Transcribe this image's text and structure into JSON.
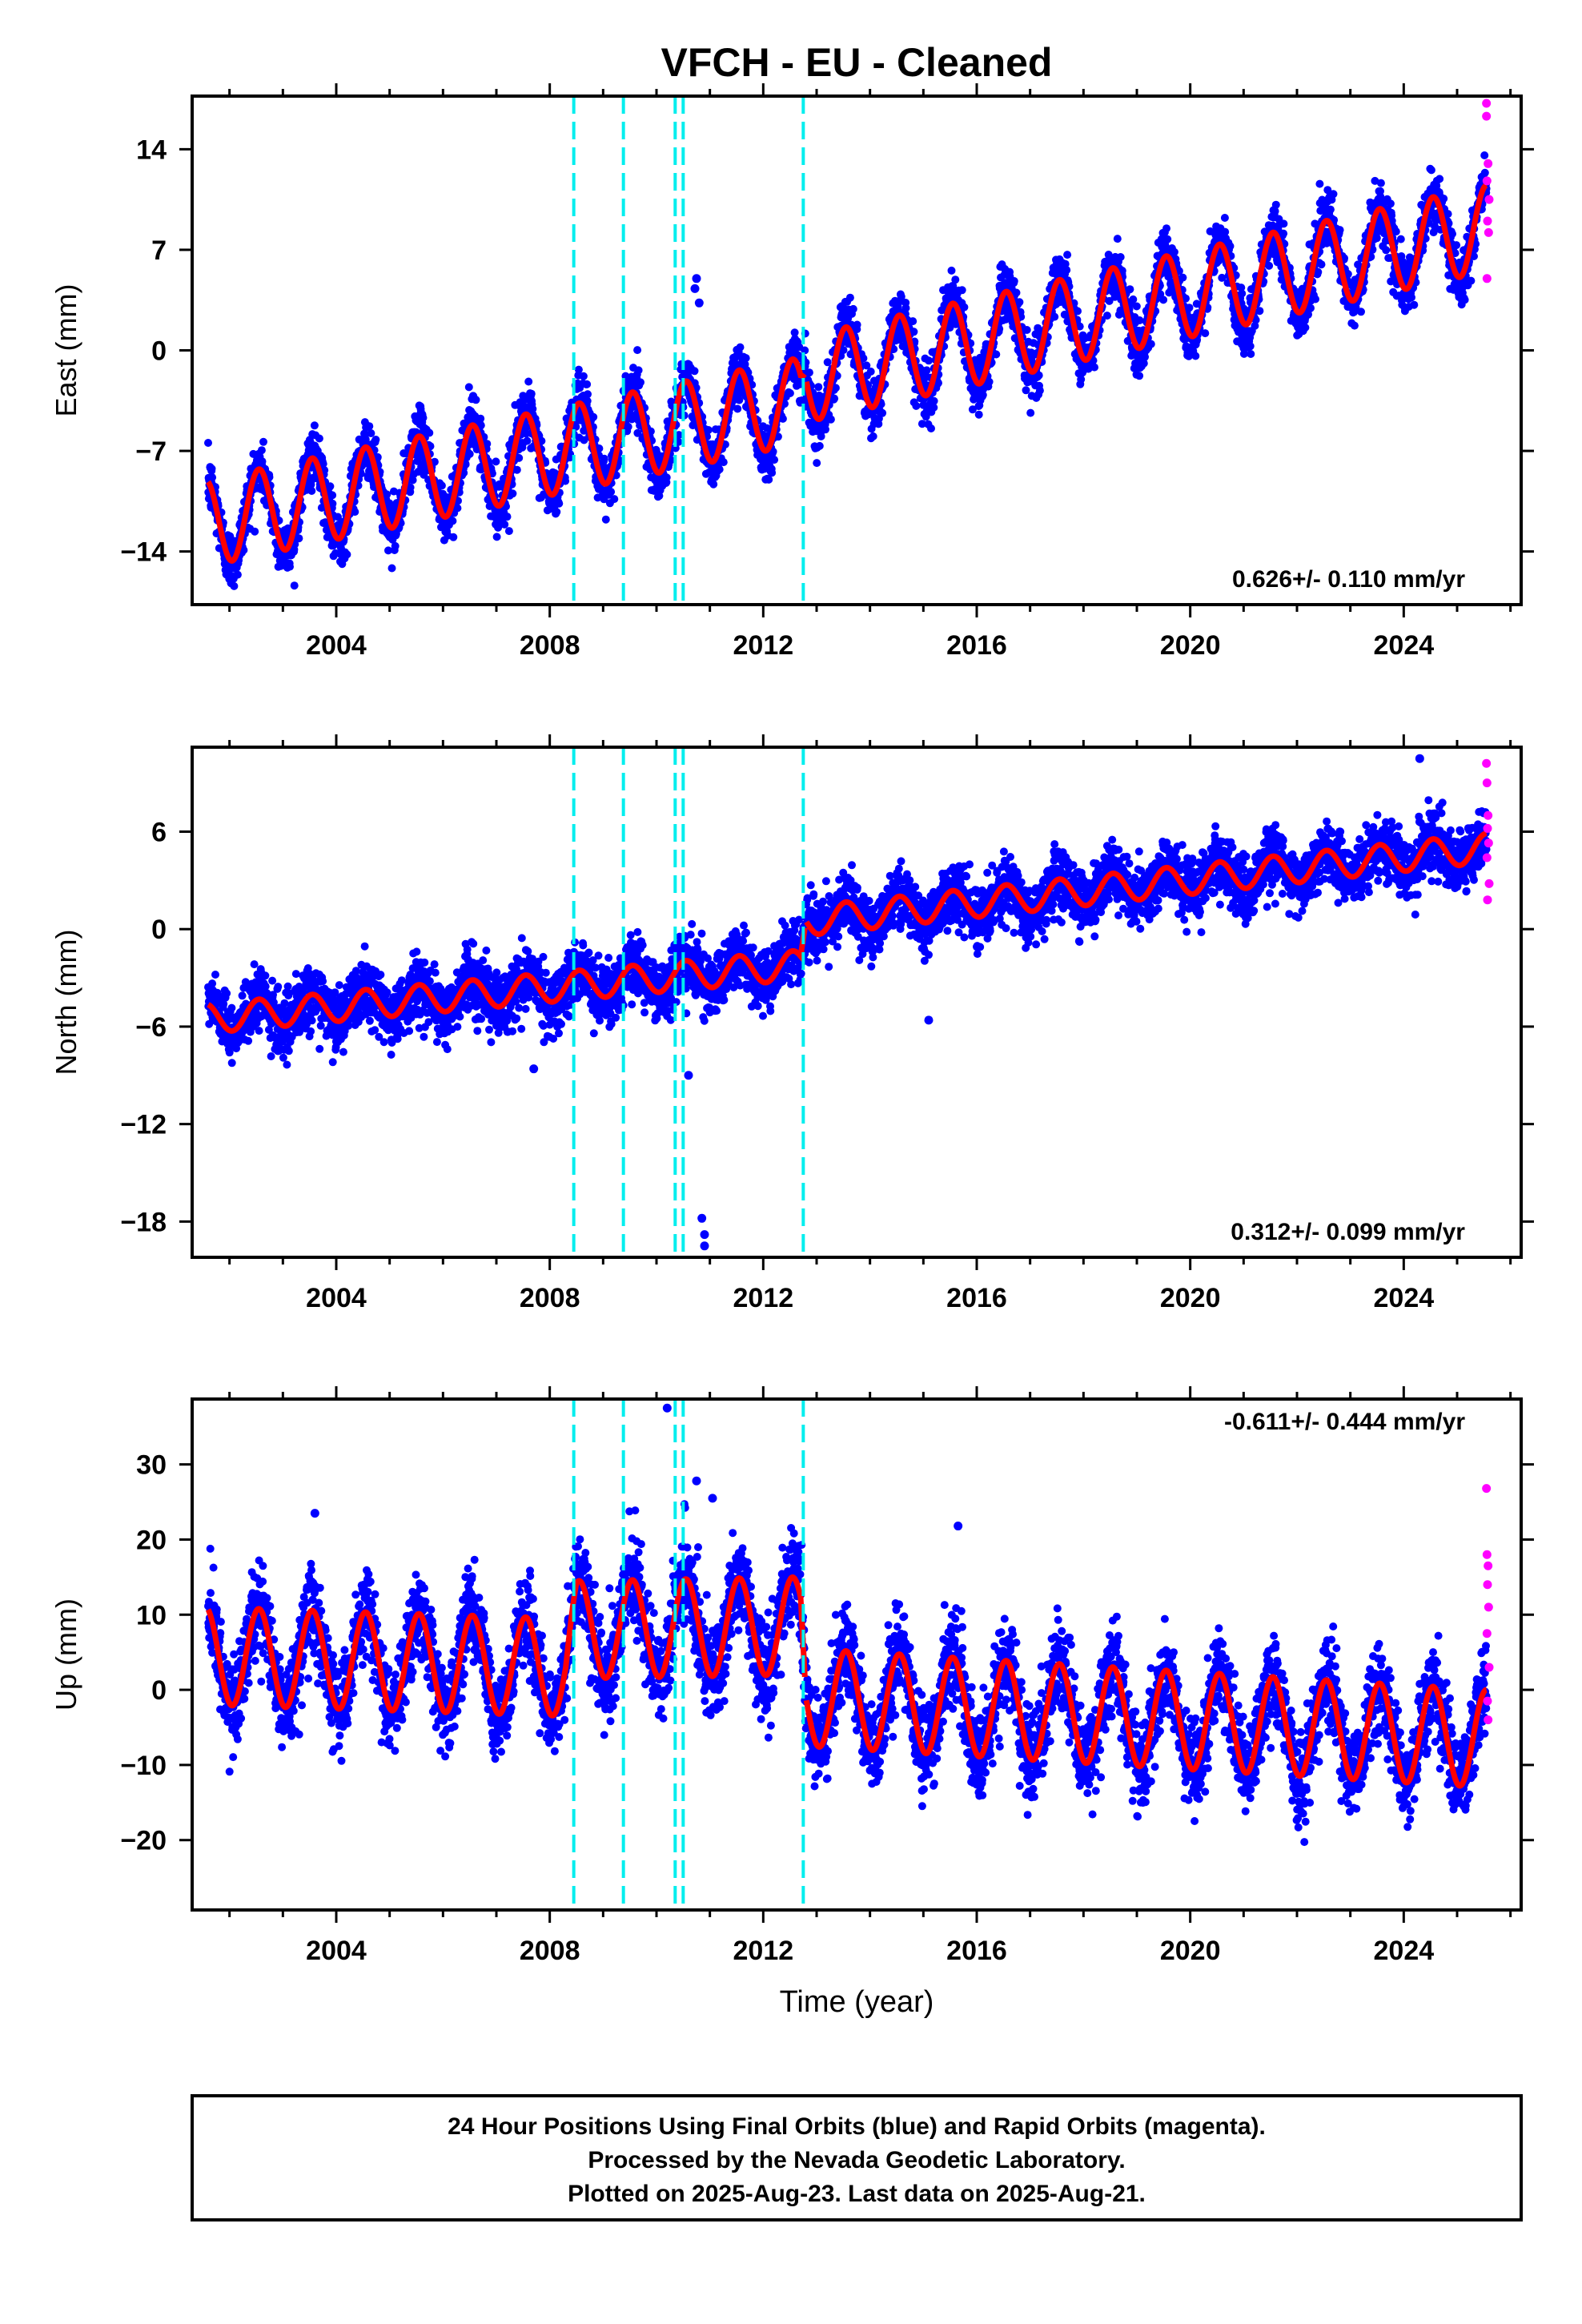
{
  "title": "VFCH  - EU - Cleaned",
  "colors": {
    "final_orbits": "#0000ff",
    "rapid_orbits": "#ff00ff",
    "model": "#ff0000",
    "offsets": "#00eeee",
    "frame": "#000000"
  },
  "footer": {
    "line1": "24 Hour Positions Using Final Orbits (blue) and Rapid Orbits (magenta).",
    "line2": "Processed by the Nevada Geodetic Laboratory.",
    "line3": "Plotted on 2025-Aug-23. Last data on 2025-Aug-21."
  },
  "chart_data": [
    {
      "type": "scatter",
      "component": "east",
      "ylabel": "East (mm)",
      "xlabel": "",
      "xlim": [
        2001.3,
        2026.2
      ],
      "ylim": [
        -17.7,
        17.7
      ],
      "xticks": [
        2004,
        2008,
        2012,
        2016,
        2020,
        2024
      ],
      "yticks": [
        -14,
        -7,
        0,
        7,
        14
      ],
      "rate_label": "0.626+/- 0.110 mm/yr",
      "rate_position": "bottom-right",
      "offsets": [
        2008.45,
        2009.38,
        2010.35,
        2010.5,
        2012.75
      ],
      "series": [
        {
          "kind": "final_orbits",
          "x_range": [
            2001.6,
            2025.55
          ],
          "trend_start": -12.5,
          "trend_end": 11.0,
          "annual_amplitude": 3.2,
          "scatter": 1.3
        },
        {
          "kind": "model",
          "knots": [
            [
              2001.6,
              -12.0
            ],
            [
              2012.7,
              -3.5
            ],
            [
              2012.8,
              -2.0
            ],
            [
              2025.55,
              8.5
            ]
          ],
          "annual_amplitude": 3.0
        }
      ],
      "rapid_orbits": [
        [
          2025.55,
          17.2
        ],
        [
          2025.55,
          16.3
        ],
        [
          2025.58,
          13.0
        ],
        [
          2025.56,
          11.8
        ],
        [
          2025.6,
          10.5
        ],
        [
          2025.57,
          9.0
        ],
        [
          2025.59,
          8.2
        ],
        [
          2025.56,
          5.0
        ]
      ],
      "outliers": [
        [
          2010.75,
          5.0
        ],
        [
          2010.72,
          4.3
        ],
        [
          2010.8,
          3.3
        ]
      ]
    },
    {
      "type": "scatter",
      "component": "north",
      "ylabel": "North (mm)",
      "xlabel": "",
      "xlim": [
        2001.3,
        2026.2
      ],
      "ylim": [
        -20.2,
        11.2
      ],
      "xticks": [
        2004,
        2008,
        2012,
        2016,
        2020,
        2024
      ],
      "yticks": [
        -18,
        -12,
        -6,
        0,
        6
      ],
      "rate_label": "0.312+/- 0.099 mm/yr",
      "rate_position": "bottom-right",
      "offsets": [
        2008.45,
        2009.38,
        2010.35,
        2010.5,
        2012.75
      ],
      "series": [
        {
          "kind": "final_orbits",
          "x_range": [
            2001.6,
            2025.55
          ],
          "trend_start": -4.5,
          "trend_end": 5.0,
          "annual_amplitude": 0.8,
          "scatter": 1.2
        },
        {
          "kind": "model",
          "knots": [
            [
              2001.6,
              -5.5
            ],
            [
              2012.7,
              -2.2
            ],
            [
              2012.8,
              0.5
            ],
            [
              2025.55,
              5.0
            ]
          ],
          "annual_amplitude": 0.9
        }
      ],
      "rapid_orbits": [
        [
          2025.55,
          10.2
        ],
        [
          2025.56,
          9.0
        ],
        [
          2025.58,
          7.0
        ],
        [
          2025.57,
          6.2
        ],
        [
          2025.59,
          5.3
        ],
        [
          2025.56,
          4.4
        ],
        [
          2025.6,
          2.8
        ],
        [
          2025.57,
          1.8
        ]
      ],
      "outliers": [
        [
          2010.85,
          -17.8
        ],
        [
          2010.9,
          -18.8
        ],
        [
          2010.9,
          -19.5
        ],
        [
          2010.6,
          -9.0
        ],
        [
          2007.7,
          -8.6
        ],
        [
          2015.1,
          -5.6
        ],
        [
          2024.3,
          10.5
        ]
      ]
    },
    {
      "type": "scatter",
      "component": "up",
      "ylabel": "Up (mm)",
      "xlabel": "Time (year)",
      "xlim": [
        2001.3,
        2026.2
      ],
      "ylim": [
        -29.3,
        38.7
      ],
      "xticks": [
        2004,
        2008,
        2012,
        2016,
        2020,
        2024
      ],
      "yticks": [
        -20,
        -10,
        0,
        10,
        20,
        30
      ],
      "rate_label": "-0.611+/- 0.444 mm/yr",
      "rate_position": "top-right",
      "offsets": [
        2008.45,
        2009.38,
        2010.35,
        2010.5,
        2012.75
      ],
      "series": [
        {
          "kind": "final_orbits",
          "x_range": [
            2001.6,
            2025.55
          ],
          "trend_start": 4.0,
          "trend_end": -6.5,
          "annual_amplitude": 7.0,
          "scatter": 4.0
        },
        {
          "kind": "model",
          "knots": [
            [
              2001.6,
              4.5
            ],
            [
              2008.3,
              3.0
            ],
            [
              2008.5,
              8.0
            ],
            [
              2012.7,
              8.5
            ],
            [
              2012.8,
              -1.0
            ],
            [
              2025.55,
              -6.5
            ]
          ],
          "annual_amplitude": 6.5
        }
      ],
      "rapid_orbits": [
        [
          2025.55,
          26.8
        ],
        [
          2025.56,
          18.0
        ],
        [
          2025.58,
          16.5
        ],
        [
          2025.57,
          14.0
        ],
        [
          2025.59,
          11.0
        ],
        [
          2025.56,
          7.5
        ],
        [
          2025.6,
          3.0
        ],
        [
          2025.57,
          -1.5
        ],
        [
          2025.58,
          -4.0
        ]
      ],
      "outliers": [
        [
          2010.2,
          37.5
        ],
        [
          2010.75,
          27.8
        ],
        [
          2011.05,
          25.5
        ],
        [
          2015.65,
          21.8
        ],
        [
          2003.6,
          23.5
        ]
      ]
    }
  ]
}
